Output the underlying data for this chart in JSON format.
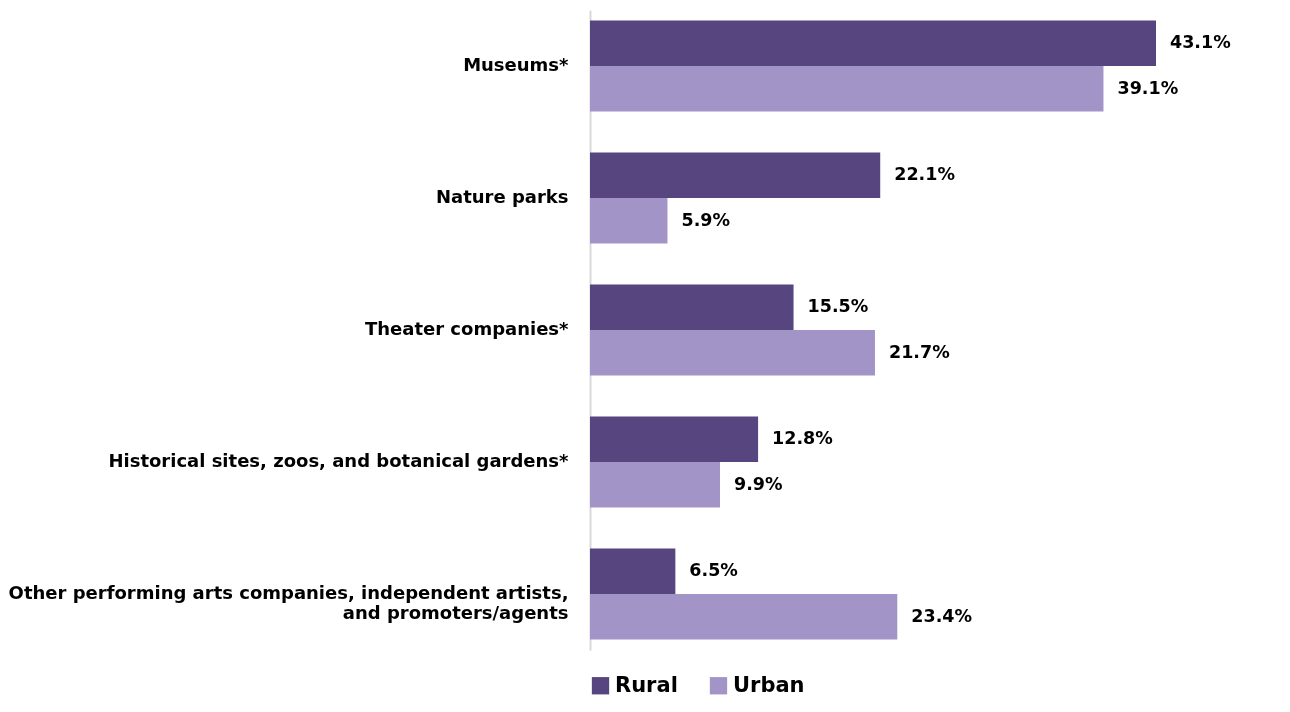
{
  "chart_data": {
    "type": "bar",
    "orientation": "horizontal",
    "categories": [
      "Museums*",
      "Nature parks",
      "Theater companies*",
      "Historical sites, zoos, and botanical gardens*",
      "Other performing arts companies, independent artists, and promoters/agents"
    ],
    "series": [
      {
        "name": "Rural",
        "color": "#56457e",
        "values": [
          43.1,
          22.1,
          15.5,
          12.8,
          6.5
        ],
        "value_labels": [
          "43.1%",
          "22.1%",
          "15.5%",
          "12.8%",
          "6.5%"
        ]
      },
      {
        "name": "Urban",
        "color": "#a394c8",
        "values": [
          39.1,
          5.9,
          21.7,
          9.9,
          23.4
        ],
        "value_labels": [
          "39.1%",
          "5.9%",
          "21.7%",
          "9.9%",
          "23.4%"
        ]
      }
    ],
    "tick_labels": "y",
    "legend": "bottom"
  }
}
